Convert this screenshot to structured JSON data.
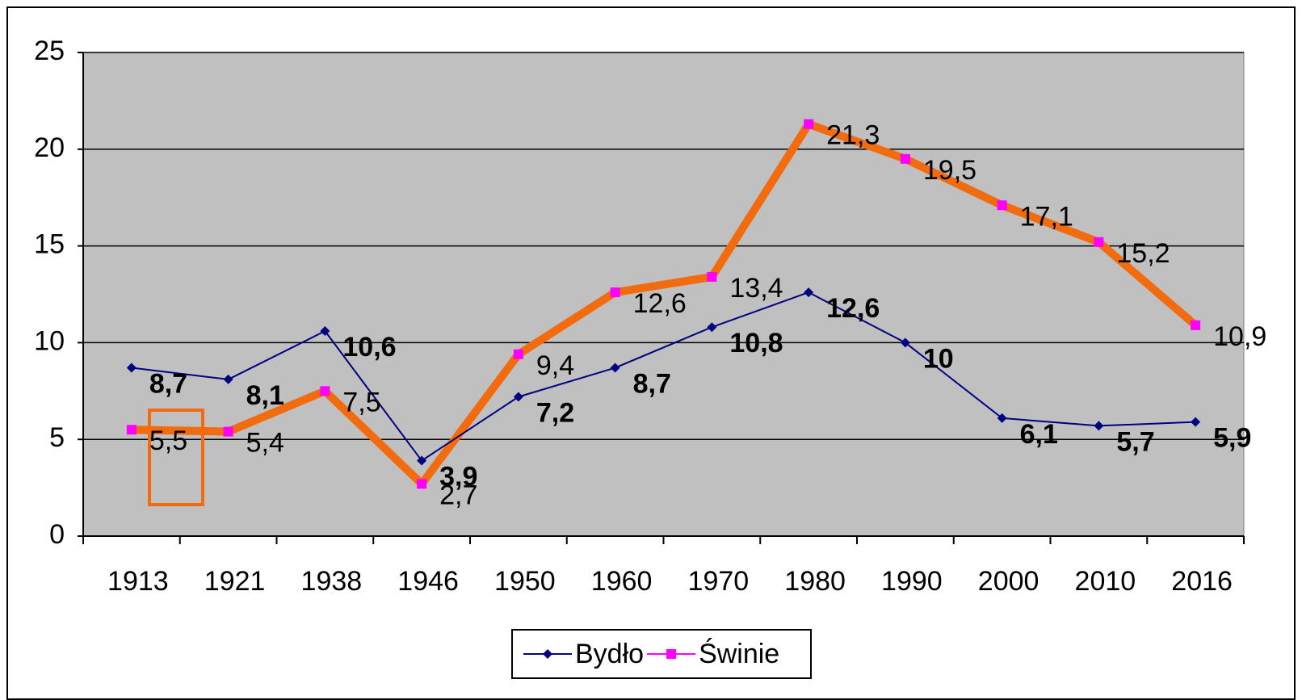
{
  "chart_data": {
    "type": "line",
    "categories": [
      "1913",
      "1921",
      "1938",
      "1946",
      "1950",
      "1960",
      "1970",
      "1980",
      "1990",
      "2000",
      "2010",
      "2016"
    ],
    "series": [
      {
        "name": "Bydło",
        "color": "#000080",
        "values": [
          8.7,
          8.1,
          10.6,
          3.9,
          7.2,
          8.7,
          10.8,
          12.6,
          10,
          6.1,
          5.7,
          5.9
        ],
        "value_labels": [
          "8,7",
          "8,1",
          "10,6",
          "3,9",
          "7,2",
          "8,7",
          "10,8",
          "12,6",
          "10",
          "6,1",
          "5,7",
          "5,9"
        ]
      },
      {
        "name": "Świnie",
        "color": "#ff00ff",
        "line_color": "#f26b0f",
        "values": [
          5.5,
          5.4,
          7.5,
          2.7,
          9.4,
          12.6,
          13.4,
          21.3,
          19.5,
          17.1,
          15.2,
          10.9
        ],
        "value_labels": [
          "5,5",
          "5,4",
          "7,5",
          "2,7",
          "9,4",
          "12,6",
          "13,4",
          "21,3",
          "19,5",
          "17,1",
          "15,2",
          "10,9"
        ]
      }
    ],
    "ylim": [
      0,
      25
    ],
    "yticks": [
      0,
      5,
      10,
      15,
      20,
      25
    ],
    "grid": true,
    "legend": "bottom"
  }
}
